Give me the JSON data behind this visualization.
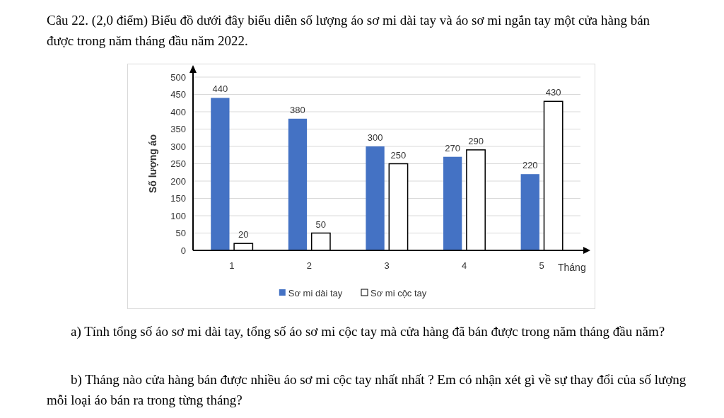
{
  "chart_data": {
    "type": "bar",
    "title": "Câu 22. (2,0 điểm) Biểu đồ dưới đây biểu diễn số lượng áo sơ mi dài tay và áo sơ mi ngắn tay một cửa hàng bán được trong năm tháng đầu năm 2022.",
    "xlabel": "Tháng",
    "ylabel": "Số lượng áo",
    "categories": [
      "1",
      "2",
      "3",
      "4",
      "5"
    ],
    "series": [
      {
        "name": "Sơ mi dài tay",
        "color": "#4472c4",
        "values": [
          440,
          380,
          300,
          270,
          220
        ]
      },
      {
        "name": "Sơ mi cộc tay",
        "color": "#ffffff",
        "values": [
          20,
          50,
          250,
          290,
          430
        ]
      }
    ],
    "ylim": [
      0,
      500
    ],
    "yticks": [
      0,
      50,
      100,
      150,
      200,
      250,
      300,
      350,
      400,
      450,
      500
    ],
    "grid": "y",
    "legend": "bottom",
    "data_labels": true,
    "annotations": [
      "a) Tính tổng số áo sơ mi dài tay, tổng số áo sơ mi cộc tay mà cửa hàng đã bán được trong năm tháng đầu năm?",
      "b) Tháng nào cửa hàng bán được nhiều áo sơ mi cộc tay nhất nhất ? Em có nhận xét gì về sự thay đổi của số lượng mỗi loại áo bán ra trong từng tháng?"
    ]
  }
}
